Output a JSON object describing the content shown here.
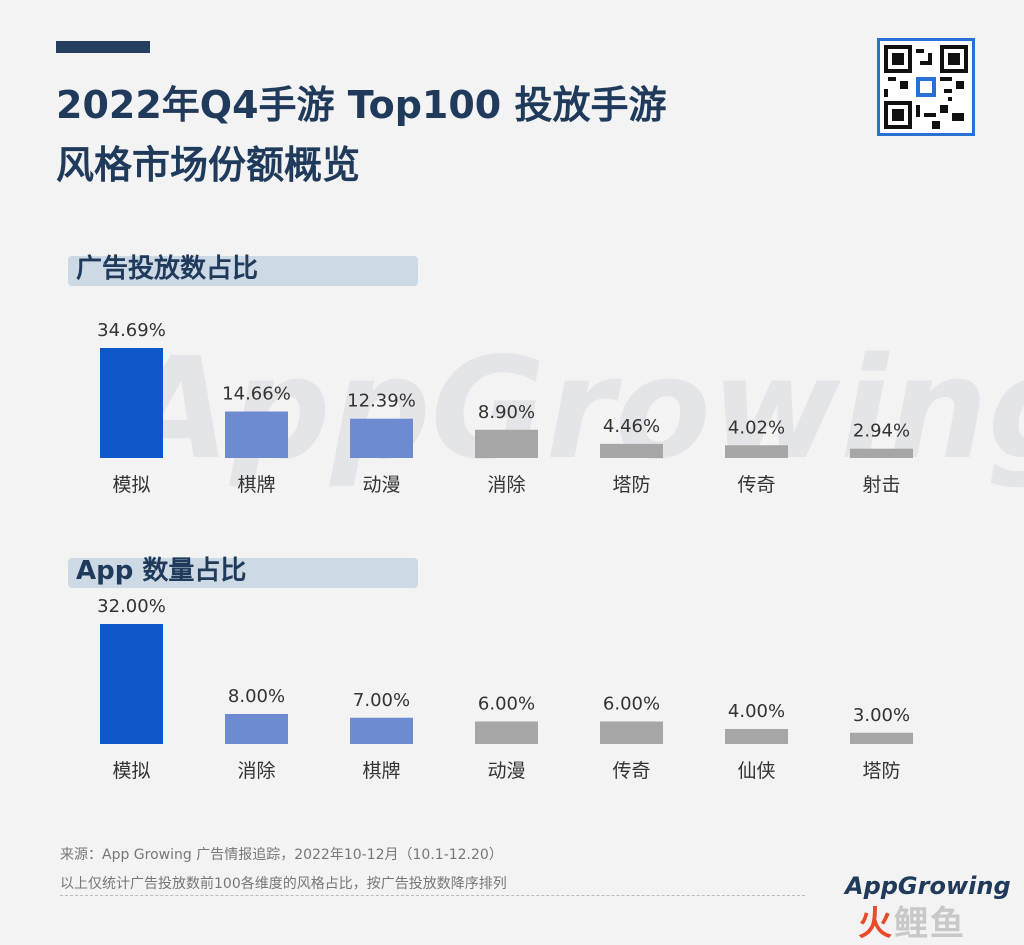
{
  "title": {
    "line1": "2022年Q4手游 Top100 投放手游",
    "line2": "风格市场份额概览"
  },
  "watermark": "AppGrowing",
  "colors": {
    "primary": "#0d57c8",
    "secondary": "#6e8ad0",
    "gray": "#a6a6a6",
    "title": "#1f3a5a",
    "labelBg": "#cdd9e5"
  },
  "qr_icon": "qr-code-icon",
  "chart_data": [
    {
      "type": "bar",
      "title": "广告投放数占比",
      "categories": [
        "模拟",
        "棋牌",
        "动漫",
        "消除",
        "塔防",
        "传奇",
        "射击"
      ],
      "values": [
        34.69,
        14.66,
        12.39,
        8.9,
        4.46,
        4.02,
        2.94
      ],
      "value_labels": [
        "34.69%",
        "14.66%",
        "12.39%",
        "8.90%",
        "4.46%",
        "4.02%",
        "2.94%"
      ],
      "color_groups": [
        "primary",
        "secondary",
        "secondary",
        "gray",
        "gray",
        "gray",
        "gray"
      ],
      "unit": "%"
    },
    {
      "type": "bar",
      "title": "App 数量占比",
      "categories": [
        "模拟",
        "消除",
        "棋牌",
        "动漫",
        "传奇",
        "仙侠",
        "塔防"
      ],
      "values": [
        32.0,
        8.0,
        7.0,
        6.0,
        6.0,
        4.0,
        3.0
      ],
      "value_labels": [
        "32.00%",
        "8.00%",
        "7.00%",
        "6.00%",
        "6.00%",
        "4.00%",
        "3.00%"
      ],
      "color_groups": [
        "primary",
        "secondary",
        "secondary",
        "gray",
        "gray",
        "gray",
        "gray"
      ],
      "unit": "%"
    }
  ],
  "footer": {
    "source": "来源：App Growing 广告情报追踪，2022年10-12月（10.1-12.20）",
    "note": "以上仅统计广告投放数前100各维度的风格占比，按广告投放数降序排列"
  },
  "logo": "AppGrowing",
  "seal": {
    "part1": "火",
    "part2": "鲤鱼"
  }
}
